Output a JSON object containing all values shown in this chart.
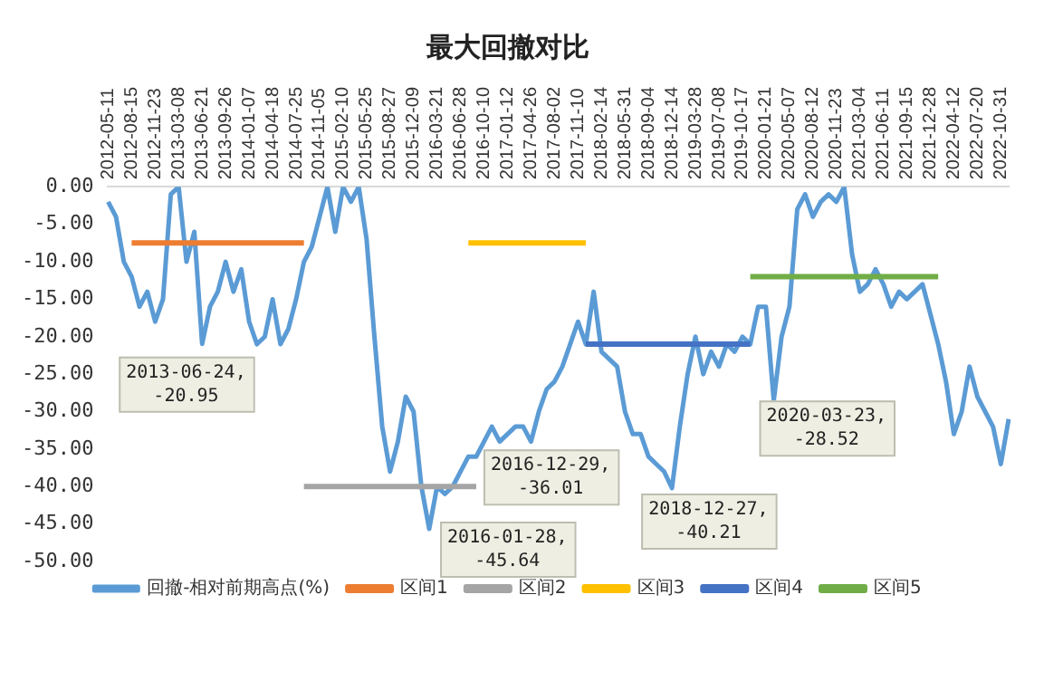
{
  "chart_data": {
    "type": "line",
    "title": "最大回撤对比",
    "categories": [
      "2012-05-11",
      null,
      null,
      "2012-08-15",
      null,
      null,
      "2012-11-23",
      null,
      null,
      "2013-03-08",
      null,
      null,
      "2013-06-21",
      null,
      null,
      "2013-09-26",
      null,
      null,
      "2014-01-07",
      null,
      null,
      "2014-04-18",
      null,
      null,
      "2014-07-25",
      null,
      null,
      "2014-11-05",
      null,
      null,
      "2015-02-10",
      null,
      null,
      "2015-05-25",
      null,
      null,
      "2015-08-27",
      null,
      null,
      "2015-12-09",
      null,
      null,
      "2016-03-21",
      null,
      null,
      "2016-06-28",
      null,
      null,
      "2016-10-10",
      null,
      null,
      "2017-01-12",
      null,
      null,
      "2017-04-26",
      null,
      null,
      "2017-08-02",
      null,
      null,
      "2017-11-10",
      null,
      null,
      "2018-02-14",
      null,
      null,
      "2018-05-31",
      null,
      null,
      "2018-09-04",
      null,
      null,
      "2018-12-14",
      null,
      null,
      "2019-03-28",
      null,
      null,
      "2019-07-08",
      null,
      null,
      "2019-10-17",
      null,
      null,
      "2020-01-21",
      null,
      null,
      "2020-05-07",
      null,
      null,
      "2020-08-12",
      null,
      null,
      "2020-11-23",
      null,
      null,
      "2021-03-04",
      null,
      null,
      "2021-06-11",
      null,
      null,
      "2021-09-15",
      null,
      null,
      "2021-12-28",
      null,
      null,
      "2022-04-12",
      null,
      null,
      "2022-07-20",
      null,
      null,
      "2022-10-31",
      null
    ],
    "series": [
      {
        "name": "回撤-相对前期高点(%)",
        "color": "#5b9bd5",
        "values": [
          -2,
          -4,
          -10,
          -12,
          -16,
          -14,
          -18,
          -15,
          -1,
          0,
          -10,
          -6,
          -20.95,
          -16,
          -14,
          -10,
          -14,
          -11,
          -18,
          -21,
          -20,
          -15,
          -21,
          -19,
          -15,
          -10,
          -8,
          -4,
          0,
          -6,
          0,
          -2,
          0,
          -7,
          -20,
          -32,
          -38,
          -34,
          -28,
          -30,
          -40,
          -45.64,
          -40,
          -41,
          -40,
          -38,
          -36,
          -36.01,
          -34,
          -32,
          -34,
          -33,
          -32,
          -32,
          -34,
          -30,
          -27,
          -26,
          -24,
          -21,
          -18,
          -21,
          -14,
          -22,
          -23,
          -24,
          -30,
          -33,
          -33,
          -36,
          -37,
          -38,
          -40.21,
          -32,
          -25,
          -20,
          -25,
          -22,
          -24,
          -21,
          -22,
          -20,
          -21,
          -16,
          -16,
          -28.52,
          -20,
          -16,
          -3,
          -1,
          -4,
          -2,
          -1,
          -2,
          0,
          -9,
          -14,
          -13,
          -11,
          -13,
          -16,
          -14,
          -15,
          -14,
          -13,
          -17,
          -21,
          -26,
          -33,
          -30,
          -24,
          -28,
          -30,
          -32,
          -37,
          -31
        ]
      },
      {
        "name": "区间1",
        "color": "#ed7d31",
        "values": [
          null,
          null,
          null,
          -7.5,
          -7.5,
          -7.5,
          -7.5,
          -7.5,
          -7.5,
          -7.5,
          -7.5,
          -7.5,
          -7.5,
          -7.5,
          -7.5,
          -7.5,
          -7.5,
          -7.5,
          -7.5,
          -7.5,
          -7.5,
          -7.5,
          -7.5,
          -7.5,
          -7.5,
          -7.5,
          null,
          null,
          null,
          null,
          null,
          null,
          null,
          null,
          null,
          null,
          null,
          null,
          null,
          null,
          null,
          null,
          null,
          null,
          null,
          null,
          null,
          null,
          null,
          null,
          null,
          null,
          null,
          null,
          null,
          null,
          null,
          null,
          null,
          null,
          null,
          null,
          null,
          null,
          null,
          null,
          null,
          null,
          null,
          null,
          null,
          null,
          null,
          null,
          null,
          null,
          null,
          null,
          null,
          null,
          null,
          null,
          null,
          null,
          null,
          null,
          null,
          null,
          null,
          null,
          null,
          null,
          null,
          null,
          null,
          null,
          null,
          null,
          null,
          null,
          null,
          null,
          null,
          null,
          null,
          null,
          null,
          null,
          null,
          null,
          null,
          null,
          null,
          null,
          null,
          null
        ]
      },
      {
        "name": "区间2",
        "color": "#a5a5a5",
        "values": [
          null,
          null,
          null,
          null,
          null,
          null,
          null,
          null,
          null,
          null,
          null,
          null,
          null,
          null,
          null,
          null,
          null,
          null,
          null,
          null,
          null,
          null,
          null,
          null,
          null,
          -40,
          -40,
          -40,
          -40,
          -40,
          -40,
          -40,
          -40,
          -40,
          -40,
          -40,
          -40,
          -40,
          -40,
          -40,
          -40,
          -40,
          -40,
          -40,
          -40,
          -40,
          -40,
          -40,
          null,
          null,
          null,
          null,
          null,
          null,
          null,
          null,
          null,
          null,
          null,
          null,
          null,
          null,
          null,
          null,
          null,
          null,
          null,
          null,
          null,
          null,
          null,
          null,
          null,
          null,
          null,
          null,
          null,
          null,
          null,
          null,
          null,
          null,
          null,
          null,
          null,
          null,
          null,
          null,
          null,
          null,
          null,
          null,
          null,
          null,
          null,
          null,
          null,
          null,
          null,
          null,
          null,
          null,
          null,
          null,
          null,
          null,
          null,
          null,
          null,
          null,
          null,
          null,
          null,
          null,
          null,
          null
        ]
      },
      {
        "name": "区间3",
        "color": "#ffc000",
        "values": [
          null,
          null,
          null,
          null,
          null,
          null,
          null,
          null,
          null,
          null,
          null,
          null,
          null,
          null,
          null,
          null,
          null,
          null,
          null,
          null,
          null,
          null,
          null,
          null,
          null,
          null,
          null,
          null,
          null,
          null,
          null,
          null,
          null,
          null,
          null,
          null,
          null,
          null,
          null,
          null,
          null,
          null,
          null,
          null,
          null,
          null,
          -7.5,
          -7.5,
          -7.5,
          -7.5,
          -7.5,
          -7.5,
          -7.5,
          -7.5,
          -7.5,
          -7.5,
          -7.5,
          -7.5,
          -7.5,
          -7.5,
          -7.5,
          -7.5,
          null,
          null,
          null,
          null,
          null,
          null,
          null,
          null,
          null,
          null,
          null,
          null,
          null,
          null,
          null,
          null,
          null,
          null,
          null,
          null,
          null,
          null,
          null,
          null,
          null,
          null,
          null,
          null,
          null,
          null,
          null,
          null,
          null,
          null,
          null,
          null,
          null,
          null,
          null,
          null,
          null,
          null,
          null,
          null,
          null,
          null,
          null,
          null,
          null,
          null,
          null,
          null,
          null,
          null
        ]
      },
      {
        "name": "区间4",
        "color": "#4472c4",
        "values": [
          null,
          null,
          null,
          null,
          null,
          null,
          null,
          null,
          null,
          null,
          null,
          null,
          null,
          null,
          null,
          null,
          null,
          null,
          null,
          null,
          null,
          null,
          null,
          null,
          null,
          null,
          null,
          null,
          null,
          null,
          null,
          null,
          null,
          null,
          null,
          null,
          null,
          null,
          null,
          null,
          null,
          null,
          null,
          null,
          null,
          null,
          null,
          null,
          null,
          null,
          null,
          null,
          null,
          null,
          null,
          null,
          null,
          null,
          null,
          null,
          null,
          -21,
          -21,
          -21,
          -21,
          -21,
          -21,
          -21,
          -21,
          -21,
          -21,
          -21,
          -21,
          -21,
          -21,
          -21,
          -21,
          -21,
          -21,
          -21,
          -21,
          -21,
          -21,
          null,
          null,
          null,
          null,
          null,
          null,
          null,
          null,
          null,
          null,
          null,
          null,
          null,
          null,
          null,
          null,
          null,
          null,
          null,
          null,
          null,
          null,
          null,
          null,
          null,
          null,
          null,
          null,
          null,
          null,
          null,
          null,
          null
        ]
      },
      {
        "name": "区间5",
        "color": "#70ad47",
        "values": [
          null,
          null,
          null,
          null,
          null,
          null,
          null,
          null,
          null,
          null,
          null,
          null,
          null,
          null,
          null,
          null,
          null,
          null,
          null,
          null,
          null,
          null,
          null,
          null,
          null,
          null,
          null,
          null,
          null,
          null,
          null,
          null,
          null,
          null,
          null,
          null,
          null,
          null,
          null,
          null,
          null,
          null,
          null,
          null,
          null,
          null,
          null,
          null,
          null,
          null,
          null,
          null,
          null,
          null,
          null,
          null,
          null,
          null,
          null,
          null,
          null,
          null,
          null,
          null,
          null,
          null,
          null,
          null,
          null,
          null,
          null,
          null,
          null,
          null,
          null,
          null,
          null,
          null,
          null,
          null,
          null,
          null,
          -12,
          -12,
          -12,
          -12,
          -12,
          -12,
          -12,
          -12,
          -12,
          -12,
          -12,
          -12,
          -12,
          -12,
          -12,
          -12,
          -12,
          -12,
          -12,
          -12,
          -12,
          -12,
          -12,
          -12,
          -12,
          null,
          null,
          null,
          null,
          null,
          null,
          null,
          null,
          null
        ]
      }
    ],
    "ylim": [
      -50,
      0
    ],
    "yticks": [
      {
        "value": 0,
        "label": "0.00"
      },
      {
        "value": -5,
        "label": "-5.00"
      },
      {
        "value": -10,
        "label": "-10.00"
      },
      {
        "value": -15,
        "label": "-15.00"
      },
      {
        "value": -20,
        "label": "-20.00"
      },
      {
        "value": -25,
        "label": "-25.00"
      },
      {
        "value": -30,
        "label": "-30.00"
      },
      {
        "value": -35,
        "label": "-35.00"
      },
      {
        "value": -40,
        "label": "-40.00"
      },
      {
        "value": -45,
        "label": "-45.00"
      },
      {
        "value": -50,
        "label": "-50.00"
      }
    ],
    "marker": "none",
    "legend": "bottom",
    "annotations": [
      "2013-06-24, -20.95",
      "2016-01-28, -45.64",
      "2016-12-29, -36.01",
      "2018-12-27, -40.21",
      "2020-03-23, -28.52"
    ]
  }
}
